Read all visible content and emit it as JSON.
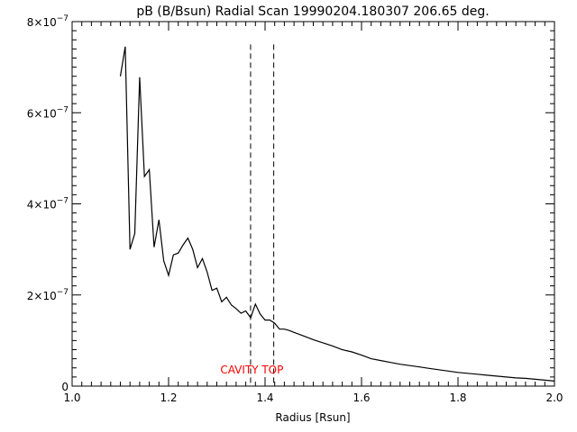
{
  "chart_data": {
    "type": "line",
    "title": "pB (B/Bsun) Radial Scan 19990204.180307 206.65 deg.",
    "xlabel": "Radius [Rsun]",
    "ylabel": "",
    "xlim": [
      1.0,
      2.0
    ],
    "ylim": [
      0,
      8e-07
    ],
    "grid": false,
    "x_ticks": [
      1.0,
      1.2,
      1.4,
      1.6,
      1.8,
      2.0
    ],
    "x_tick_labels": [
      "1.0",
      "1.2",
      "1.4",
      "1.6",
      "1.8",
      "2.0"
    ],
    "y_ticks": [
      0,
      2e-07,
      4e-07,
      6e-07,
      8e-07
    ],
    "y_tick_labels": [
      {
        "mantissa": "0",
        "exponent": ""
      },
      {
        "mantissa": "2×10",
        "exponent": "−7"
      },
      {
        "mantissa": "4×10",
        "exponent": "−7"
      },
      {
        "mantissa": "6×10",
        "exponent": "−7"
      },
      {
        "mantissa": "8×10",
        "exponent": "−7"
      }
    ],
    "series": [
      {
        "color": "#000000",
        "x": [
          1.1,
          1.11,
          1.12,
          1.13,
          1.14,
          1.15,
          1.16,
          1.17,
          1.18,
          1.19,
          1.2,
          1.21,
          1.22,
          1.23,
          1.24,
          1.25,
          1.26,
          1.27,
          1.28,
          1.29,
          1.3,
          1.31,
          1.32,
          1.33,
          1.34,
          1.35,
          1.36,
          1.37,
          1.38,
          1.39,
          1.4,
          1.41,
          1.42,
          1.43,
          1.44,
          1.45,
          1.46,
          1.48,
          1.5,
          1.52,
          1.54,
          1.56,
          1.58,
          1.6,
          1.62,
          1.64,
          1.66,
          1.68,
          1.7,
          1.72,
          1.74,
          1.76,
          1.78,
          1.8,
          1.82,
          1.84,
          1.86,
          1.88,
          1.9,
          1.92,
          1.94,
          1.96,
          1.98,
          2.0
        ],
        "y": [
          6.8e-07,
          7.45e-07,
          3e-07,
          3.35e-07,
          6.78e-07,
          4.6e-07,
          4.75e-07,
          3.05e-07,
          3.65e-07,
          2.75e-07,
          2.43e-07,
          2.88e-07,
          2.92e-07,
          3.1e-07,
          3.25e-07,
          3e-07,
          2.6e-07,
          2.8e-07,
          2.5e-07,
          2.1e-07,
          2.15e-07,
          1.85e-07,
          1.95e-07,
          1.78e-07,
          1.7e-07,
          1.6e-07,
          1.65e-07,
          1.5e-07,
          1.8e-07,
          1.58e-07,
          1.45e-07,
          1.45e-07,
          1.38e-07,
          1.25e-07,
          1.25e-07,
          1.22e-07,
          1.18e-07,
          1.1e-07,
          1.02e-07,
          9.5e-08,
          8.8e-08,
          8e-08,
          7.5e-08,
          6.8e-08,
          6e-08,
          5.6e-08,
          5.2e-08,
          4.8e-08,
          4.5e-08,
          4.2e-08,
          3.9e-08,
          3.6e-08,
          3.3e-08,
          3e-08,
          2.8e-08,
          2.6e-08,
          2.4e-08,
          2.2e-08,
          2e-08,
          1.8e-08,
          1.7e-08,
          1.5e-08,
          1.3e-08,
          1.1e-08
        ]
      }
    ],
    "vertical_lines": [
      {
        "x": 1.37,
        "style": "dashed",
        "color": "#000000"
      },
      {
        "x": 1.418,
        "style": "dashed",
        "color": "#000000"
      }
    ],
    "annotations": [
      {
        "text": "CAVITY TOP",
        "x": 1.41,
        "y": 2e-08,
        "color": "#ff0000"
      }
    ]
  }
}
